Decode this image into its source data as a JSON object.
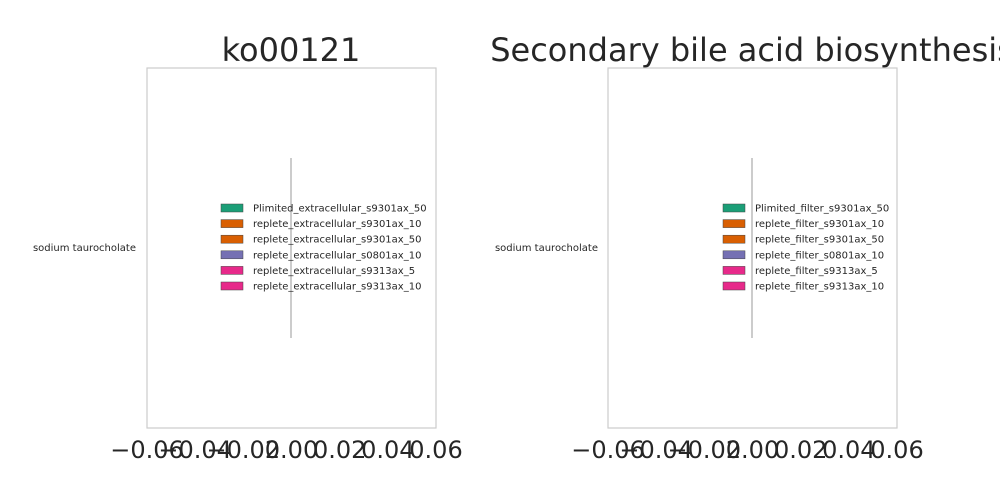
{
  "chart_data": [
    {
      "type": "bar",
      "orientation": "horizontal",
      "title": "ko00121",
      "categories": [
        "sodium taurocholate"
      ],
      "series": [
        {
          "name": "Plimited_extracellular_s9301ax_50",
          "values": [
            0
          ],
          "color": "#1b9e77"
        },
        {
          "name": "replete_extracellular_s9301ax_10",
          "values": [
            0
          ],
          "color": "#d95f02"
        },
        {
          "name": "replete_extracellular_s9301ax_50",
          "values": [
            0
          ],
          "color": "#d95f02"
        },
        {
          "name": "replete_extracellular_s0801ax_10",
          "values": [
            0
          ],
          "color": "#7570b3"
        },
        {
          "name": "replete_extracellular_s9313ax_5",
          "values": [
            0
          ],
          "color": "#e7298a"
        },
        {
          "name": "replete_extracellular_s9313ax_10",
          "values": [
            0
          ],
          "color": "#e7298a"
        }
      ],
      "xlim": [
        -0.06,
        0.06
      ],
      "xticks": [
        "−0.06",
        "−0.04",
        "−0.02",
        "0.00",
        "0.02",
        "0.04",
        "0.06"
      ],
      "grid": false,
      "legend": "center"
    },
    {
      "type": "bar",
      "orientation": "horizontal",
      "title": "Secondary bile acid biosynthesis",
      "categories": [
        "sodium taurocholate"
      ],
      "series": [
        {
          "name": "Plimited_filter_s9301ax_50",
          "values": [
            0
          ],
          "color": "#1b9e77"
        },
        {
          "name": "replete_filter_s9301ax_10",
          "values": [
            0
          ],
          "color": "#d95f02"
        },
        {
          "name": "replete_filter_s9301ax_50",
          "values": [
            0
          ],
          "color": "#d95f02"
        },
        {
          "name": "replete_filter_s0801ax_10",
          "values": [
            0
          ],
          "color": "#7570b3"
        },
        {
          "name": "replete_filter_s9313ax_5",
          "values": [
            0
          ],
          "color": "#e7298a"
        },
        {
          "name": "replete_filter_s9313ax_10",
          "values": [
            0
          ],
          "color": "#e7298a"
        }
      ],
      "xlim": [
        -0.06,
        0.06
      ],
      "xticks": [
        "−0.06",
        "−0.04",
        "−0.02",
        "0.00",
        "0.02",
        "0.04",
        "0.06"
      ],
      "grid": false,
      "legend": "center"
    }
  ]
}
